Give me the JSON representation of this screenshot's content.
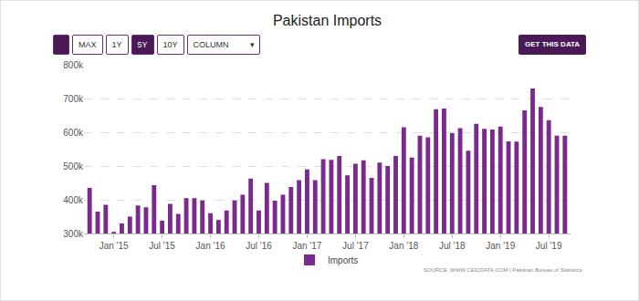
{
  "chart_data": {
    "type": "bar",
    "title": "Pakistan Imports",
    "categories": [
      null,
      null,
      null,
      "Jan '15",
      null,
      null,
      null,
      null,
      null,
      "Jul '15",
      null,
      null,
      null,
      null,
      null,
      "Jan '16",
      null,
      null,
      null,
      null,
      null,
      "Jul '16",
      null,
      null,
      null,
      null,
      null,
      "Jan '17",
      null,
      null,
      null,
      null,
      null,
      "Jul '17",
      null,
      null,
      null,
      null,
      null,
      "Jan '18",
      null,
      null,
      null,
      null,
      null,
      "Jul '18",
      null,
      null,
      null,
      null,
      null,
      "Jan '19",
      null,
      null,
      null,
      null,
      null,
      "Jul '19",
      null,
      null
    ],
    "series": [
      {
        "name": "Imports",
        "color": "#7a2a8c",
        "values": [
          435000,
          365000,
          385000,
          305000,
          330000,
          350000,
          383000,
          378000,
          443000,
          338000,
          388000,
          358000,
          405000,
          405000,
          398000,
          360000,
          340000,
          368000,
          398000,
          415000,
          463000,
          368000,
          450000,
          397000,
          415000,
          438000,
          458000,
          490000,
          458000,
          520000,
          518000,
          530000,
          472000,
          507000,
          517000,
          465000,
          510000,
          500000,
          530000,
          615000,
          525000,
          590000,
          585000,
          668000,
          670000,
          597000,
          612000,
          545000,
          625000,
          610000,
          608000,
          617000,
          573000,
          572000,
          665000,
          730000,
          675000,
          636000,
          590000,
          590000
        ]
      }
    ],
    "ylim": [
      300000,
      800000
    ],
    "yticks": [
      {
        "value": 300000,
        "label": "300k"
      },
      {
        "value": 400000,
        "label": "400k"
      },
      {
        "value": 500000,
        "label": "500k"
      },
      {
        "value": 600000,
        "label": "600k"
      },
      {
        "value": 700000,
        "label": "700k"
      },
      {
        "value": 800000,
        "label": "800k"
      }
    ],
    "grid": true,
    "legend": "bottom",
    "annotations": [
      {
        "text": "SOURCE: WWW.CEICDATA.COM | Pakistan Bureau of Statistics"
      }
    ]
  },
  "controls": {
    "buttons": [
      "MAX",
      "1Y",
      "5Y",
      "10Y"
    ],
    "active": "5Y",
    "select": "COLUMN",
    "action": "GET THIS DATA"
  }
}
